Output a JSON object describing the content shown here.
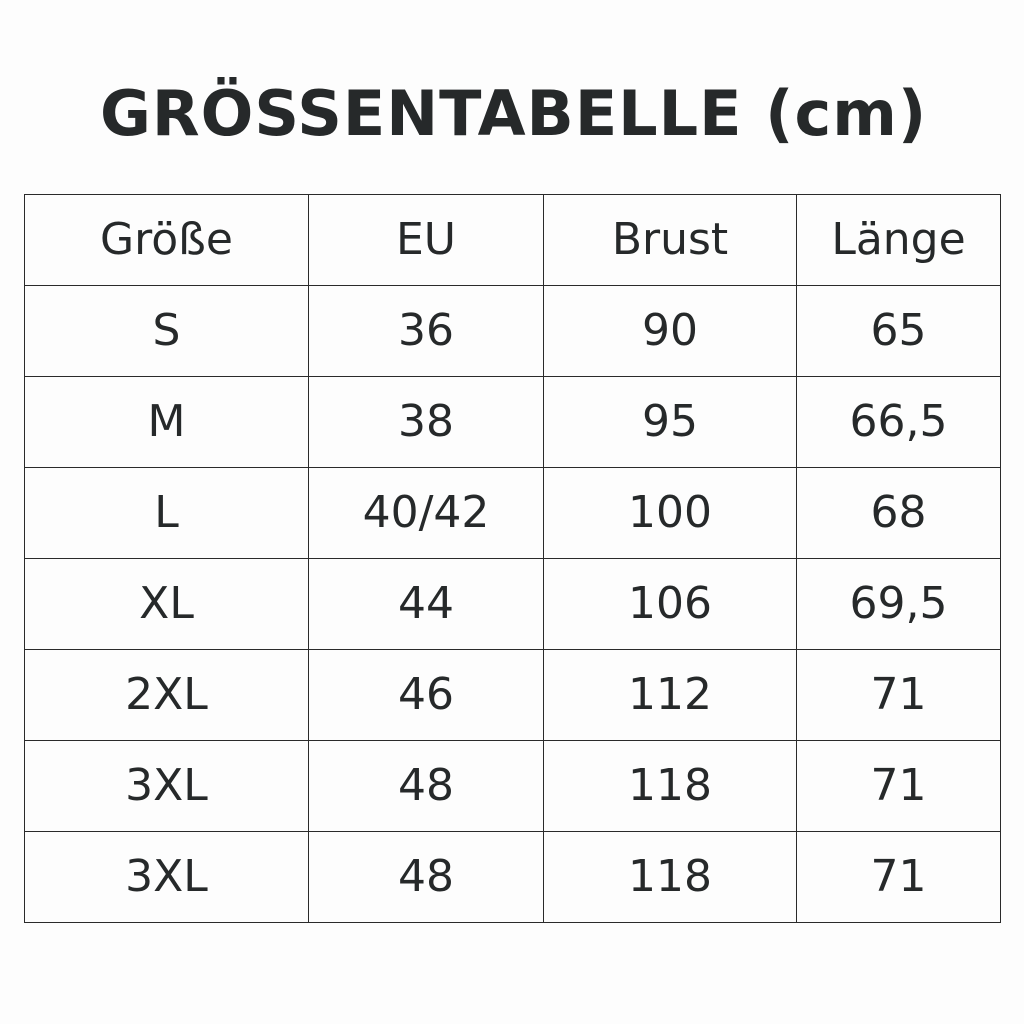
{
  "title": "GRÖSSENTABELLE (cm)",
  "table": {
    "headers": [
      "Größe",
      "EU",
      "Brust",
      "Länge"
    ],
    "rows": [
      [
        "S",
        "36",
        "90",
        "65"
      ],
      [
        "M",
        "38",
        "95",
        "66,5"
      ],
      [
        "L",
        "40/42",
        "100",
        "68"
      ],
      [
        "XL",
        "44",
        "106",
        "69,5"
      ],
      [
        "2XL",
        "46",
        "112",
        "71"
      ],
      [
        "3XL",
        "48",
        "118",
        "71"
      ],
      [
        "3XL",
        "48",
        "118",
        "71"
      ]
    ]
  }
}
